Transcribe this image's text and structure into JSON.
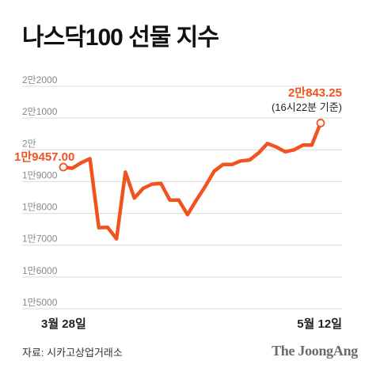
{
  "title": "나스닥100 선물 지수",
  "source": "자료: 시카고상업거래소",
  "brand": "The JoongAng",
  "chart_data": {
    "type": "line",
    "title": "나스닥100 선물 지수",
    "ylim": [
      15000,
      22000
    ],
    "y_ticks": [
      {
        "value": 22000,
        "label": "2만2000"
      },
      {
        "value": 21000,
        "label": "2만1000"
      },
      {
        "value": 20000,
        "label": "2만"
      },
      {
        "value": 19000,
        "label": "1만9000"
      },
      {
        "value": 18000,
        "label": "1만8000"
      },
      {
        "value": 17000,
        "label": "1만7000"
      },
      {
        "value": 16000,
        "label": "1만6000"
      },
      {
        "value": 15000,
        "label": "1만5000"
      }
    ],
    "x_labels": [
      "3월 28일",
      "5월 12일"
    ],
    "grid": true,
    "color": "#f0531f",
    "series": [
      {
        "values": [
          19457.0,
          19420,
          19590,
          19720,
          17550,
          17560,
          17200,
          19300,
          18480,
          18790,
          18920,
          18940,
          18420,
          18420,
          17960,
          18420,
          18850,
          19330,
          19540,
          19540,
          19650,
          19680,
          19900,
          20200,
          20090,
          19940,
          20000,
          20150,
          20150,
          20843.25
        ]
      }
    ],
    "annotations": {
      "start": {
        "value_label": "1만9457.00"
      },
      "end": {
        "value_label": "2만843.25",
        "note": "(16시22분 기준)"
      }
    }
  }
}
